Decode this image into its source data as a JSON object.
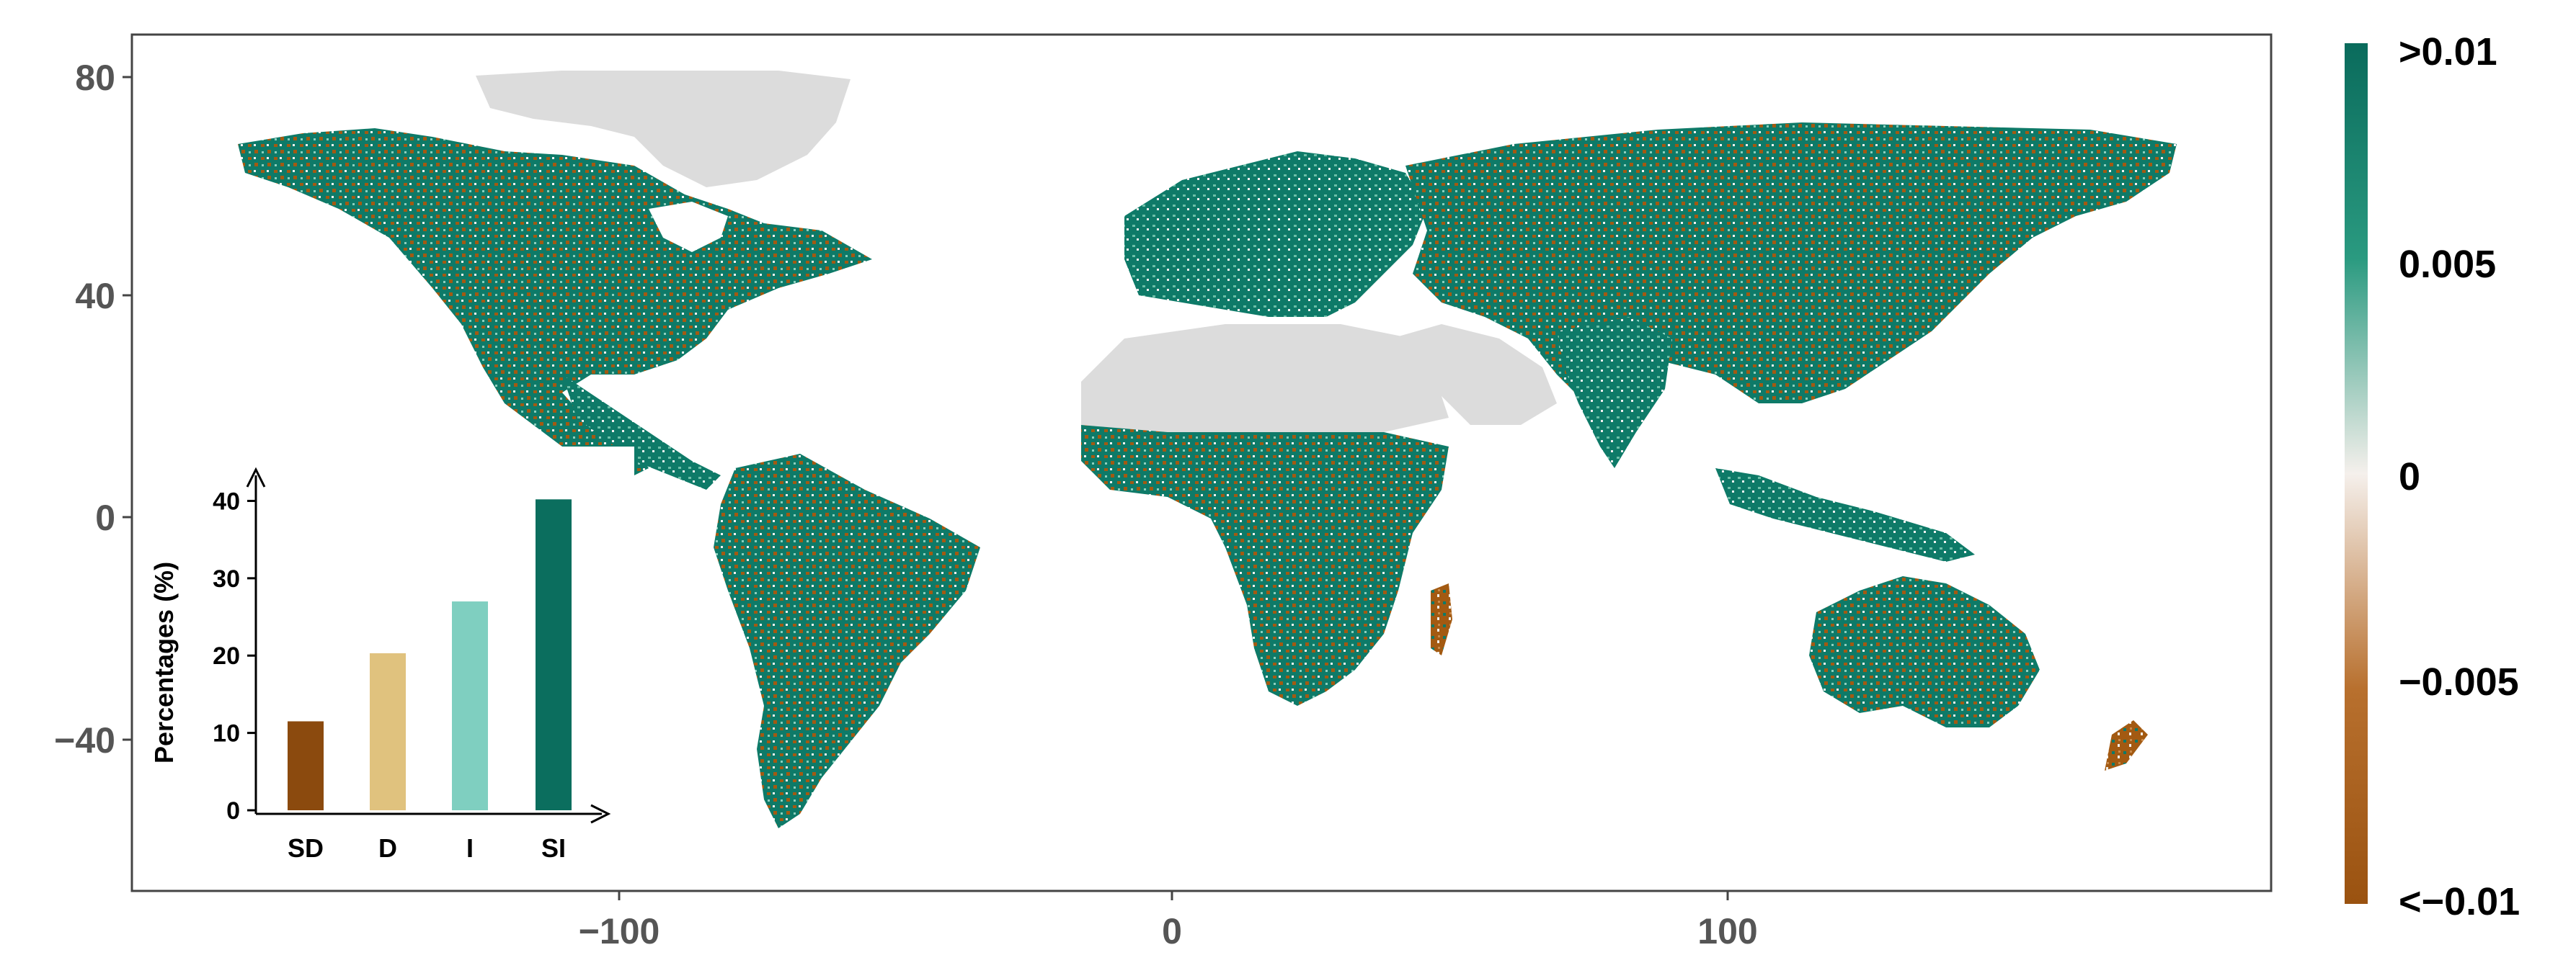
{
  "map": {
    "x_ticks": [
      "−100",
      "0",
      "100"
    ],
    "y_ticks": [
      "80",
      "40",
      "0",
      "−40"
    ],
    "x_tick_values": [
      -100,
      0,
      100
    ],
    "y_tick_values": [
      80,
      40,
      0,
      -40
    ],
    "xlim": [
      -180,
      180
    ],
    "ylim": [
      -58,
      88
    ],
    "colors": {
      "land_nodata": "#dcdcdc",
      "positive": "#0e7a68",
      "negative": "#a35a12",
      "neutral": "#f3f3f3"
    }
  },
  "legend": {
    "labels": [
      ">0.01",
      "0.005",
      "0",
      "−0.005",
      "<−0.01"
    ],
    "colors": [
      "#0a6b5c",
      "#2a9a80",
      "#f5f0ec",
      "#b8702e",
      "#9a5210"
    ]
  },
  "inset": {
    "ylabel": "Percentages (%)",
    "y_ticks": [
      "0",
      "10",
      "20",
      "30",
      "40"
    ],
    "y_tick_values": [
      0,
      10,
      20,
      30,
      40
    ]
  },
  "chart_data": {
    "type": "bar",
    "categories": [
      "SD",
      "D",
      "I",
      "SI"
    ],
    "values": [
      11.5,
      20.3,
      27.0,
      40.2
    ],
    "colors": [
      "#8b4a0e",
      "#e0c27e",
      "#7fcfc0",
      "#0b6e5e"
    ],
    "ylabel": "Percentages (%)",
    "ylim": [
      0,
      42
    ]
  }
}
